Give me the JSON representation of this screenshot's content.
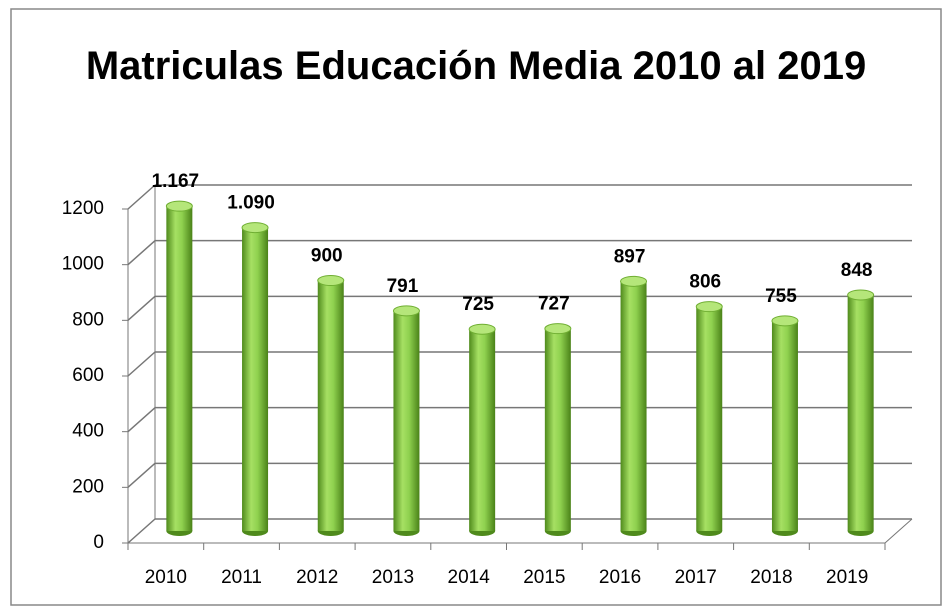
{
  "chart_data": {
    "type": "bar3d",
    "title": "Matriculas Educación Media 2010 al 2019",
    "categories": [
      "2010",
      "2011",
      "2012",
      "2013",
      "2014",
      "2015",
      "2016",
      "2017",
      "2018",
      "2019"
    ],
    "values": [
      1167,
      1090,
      900,
      791,
      725,
      727,
      897,
      806,
      755,
      848
    ],
    "value_labels": [
      "1.167",
      "1.090",
      "900",
      "791",
      "725",
      "727",
      "897",
      "806",
      "755",
      "848"
    ],
    "color": "#8fd14f",
    "ylim": [
      0,
      1200
    ],
    "yticks": [
      0,
      200,
      400,
      600,
      800,
      1000,
      1200
    ],
    "grid": true
  }
}
